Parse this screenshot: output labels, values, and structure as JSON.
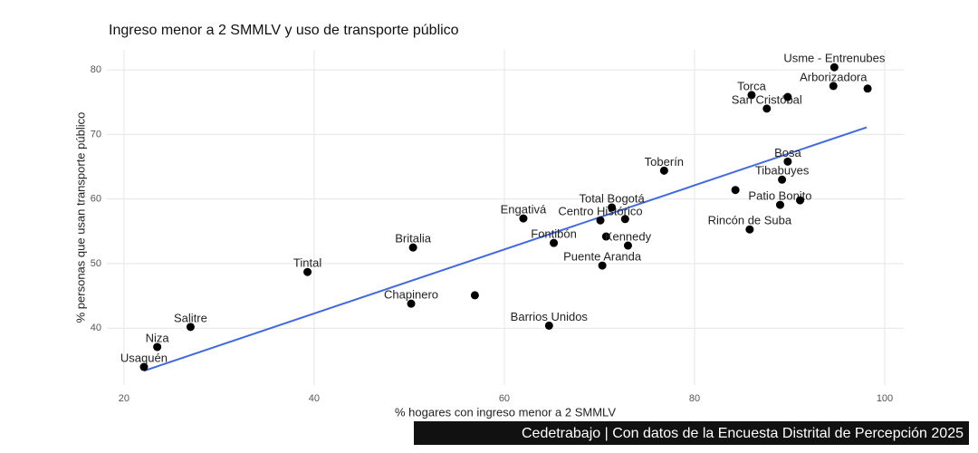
{
  "chart_data": {
    "type": "scatter",
    "title": "Ingreso menor a 2 SMMLV y uso de transporte público",
    "x_label": "% hogares con ingreso menor a 2 SMMLV",
    "y_label": "% personas que usan transporte público",
    "caption": "Cedetrabajo | Con datos de la Encuesta Distrital de Percepción 2025",
    "color": "#000000",
    "x": [
      22.1,
      23.5,
      27.0,
      39.3,
      50.4,
      50.2,
      56.9,
      64.7,
      62.0,
      65.2,
      70.1,
      71.3,
      72.7,
      70.7,
      73.0,
      70.3,
      76.8,
      84.3,
      85.8,
      89.0,
      91.1,
      89.2,
      89.8,
      86.0,
      87.6,
      89.8,
      94.7,
      94.6,
      98.2
    ],
    "y": [
      34.0,
      37.1,
      40.2,
      48.7,
      52.5,
      43.8,
      45.1,
      40.4,
      57.0,
      53.2,
      56.7,
      58.7,
      56.9,
      54.2,
      52.8,
      49.7,
      64.4,
      61.4,
      55.3,
      59.1,
      59.8,
      63.0,
      65.8,
      76.1,
      74.0,
      75.8,
      80.4,
      77.5,
      77.1
    ],
    "labels": [
      "Usaquén",
      "Niza",
      "Salitre",
      "Tintal",
      "Britalia",
      "Chapinero",
      null,
      "Barrios Unidos",
      "Engativá",
      "Fontibón",
      "Centro Histórico",
      "Total Bogotá",
      null,
      null,
      "Kennedy",
      "Puente Aranda",
      "Toberín",
      null,
      "Rincón de Suba",
      "Patio Bonito",
      null,
      "Tibabuyes",
      "Bosa",
      "Torca",
      "San Cristóbal",
      null,
      "Usme - Entrenubes",
      "Arborizadora",
      null
    ],
    "trend": {
      "color": "#4169e1",
      "x": [
        22.1,
        98.1
      ],
      "y": [
        33.4,
        71.1
      ]
    },
    "xlim": [
      18.2,
      102
    ],
    "ylim": [
      31.2,
      83.1
    ],
    "xticks": [
      20,
      40,
      60,
      80,
      100
    ],
    "yticks": [
      40,
      50,
      60,
      70,
      80
    ],
    "grid": true
  }
}
